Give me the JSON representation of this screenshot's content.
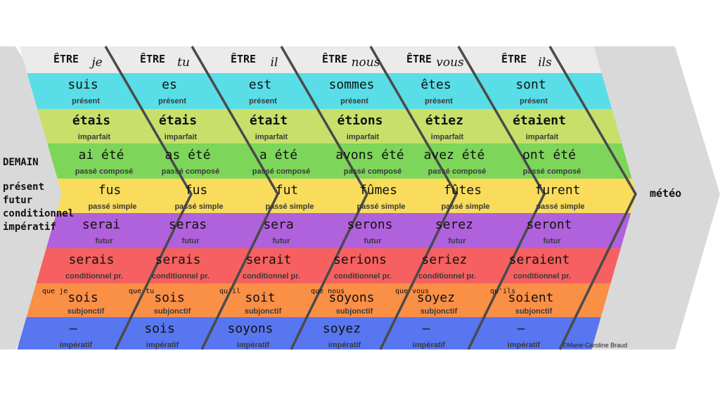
{
  "verb": "ÊTRE",
  "pronouns": [
    "je",
    "tu",
    "il",
    "nous",
    "vous",
    "ils"
  ],
  "left_panel": {
    "title": "DEMAIN",
    "items": [
      "présent",
      "futur",
      "conditionnel",
      "impératif"
    ]
  },
  "right_label": "météo",
  "credit": "©Marie-Caroline Braud",
  "colors": {
    "header": "#ebebeb",
    "present": "#59dde6",
    "imparfait": "#c8e06a",
    "passe_compose": "#7dd65a",
    "passe_simple": "#f9dc5c",
    "futur": "#b061dc",
    "conditionnel": "#f76060",
    "subjonctif": "#fa8f46",
    "imperatif": "#5776f0",
    "chevron": "#d9d9d9",
    "divider": "#4a4a4a"
  },
  "tenses": [
    {
      "key": "present",
      "label": "présent",
      "forms": [
        "suis",
        "es",
        "est",
        "sommes",
        "êtes",
        "sont"
      ]
    },
    {
      "key": "imparfait",
      "label": "imparfait",
      "forms": [
        "étais",
        "étais",
        "était",
        "étions",
        "étiez",
        "étaient"
      ]
    },
    {
      "key": "passe_compose",
      "label": "passé composé",
      "forms": [
        "ai été",
        "as été",
        "a été",
        "avons été",
        "avez été",
        "ont été"
      ]
    },
    {
      "key": "passe_simple",
      "label": "passé simple",
      "forms": [
        "fus",
        "fus",
        "fut",
        "fûmes",
        "fûtes",
        "furent"
      ]
    },
    {
      "key": "futur",
      "label": "futur",
      "forms": [
        "serai",
        "seras",
        "sera",
        "serons",
        "serez",
        "seront"
      ]
    },
    {
      "key": "conditionnel",
      "label": "conditionnel pr.",
      "forms": [
        "serais",
        "serais",
        "serait",
        "serions",
        "seriez",
        "seraient"
      ]
    },
    {
      "key": "subjonctif",
      "label": "subjonctif",
      "forms": [
        "sois",
        "sois",
        "soit",
        "soyons",
        "soyez",
        "soient"
      ],
      "prefixes": [
        "que je",
        "que tu",
        "qu'il",
        "que nous",
        "que vous",
        "qu'ils"
      ]
    },
    {
      "key": "imperatif",
      "label": "impératif",
      "forms": [
        "–",
        "sois",
        "soyons",
        "soyez",
        "–",
        "–"
      ]
    }
  ]
}
